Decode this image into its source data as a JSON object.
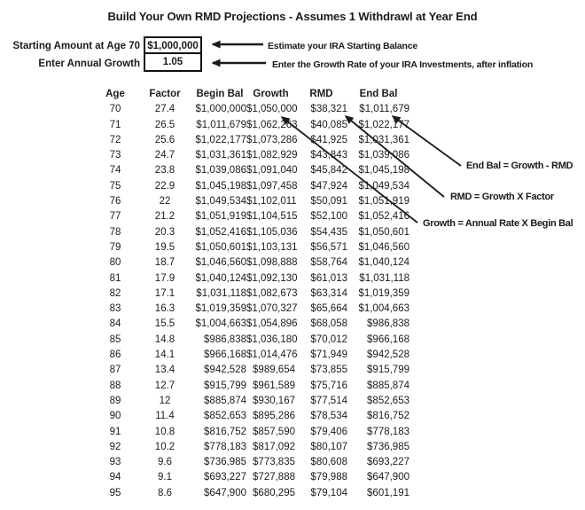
{
  "title": "Build Your Own RMD Projections - Assumes 1 Withdrawl at Year End",
  "inputs": {
    "starting_amount": {
      "label": "Starting Amount at Age 70",
      "value": "$1,000,000",
      "note": "Estimate your IRA Starting Balance"
    },
    "annual_growth": {
      "label": "Enter Annual Growth",
      "value": "1.05",
      "note": "Enter the Growth Rate of your IRA Investments, after inflation"
    }
  },
  "annotations": {
    "end_bal_formula": "End Bal = Growth - RMD",
    "rmd_formula": "RMD = Growth X Factor",
    "growth_formula": "Growth = Annual Rate X Begin Bal"
  },
  "table": {
    "columns": [
      "Age",
      "Factor",
      "Begin Bal",
      "Growth",
      "RMD",
      "End Bal"
    ],
    "rows": [
      [
        "70",
        "27.4",
        "$1,000,000",
        "$1,050,000",
        "$38,321",
        "$1,011,679"
      ],
      [
        "71",
        "26.5",
        "$1,011,679",
        "$1,062,263",
        "$40,085",
        "$1,022,177"
      ],
      [
        "72",
        "25.6",
        "$1,022,177",
        "$1,073,286",
        "$41,925",
        "$1,031,361"
      ],
      [
        "73",
        "24.7",
        "$1,031,361",
        "$1,082,929",
        "$43,843",
        "$1,039,086"
      ],
      [
        "74",
        "23.8",
        "$1,039,086",
        "$1,091,040",
        "$45,842",
        "$1,045,198"
      ],
      [
        "75",
        "22.9",
        "$1,045,198",
        "$1,097,458",
        "$47,924",
        "$1,049,534"
      ],
      [
        "76",
        "22",
        "$1,049,534",
        "$1,102,011",
        "$50,091",
        "$1,051,919"
      ],
      [
        "77",
        "21.2",
        "$1,051,919",
        "$1,104,515",
        "$52,100",
        "$1,052,416"
      ],
      [
        "78",
        "20.3",
        "$1,052,416",
        "$1,105,036",
        "$54,435",
        "$1,050,601"
      ],
      [
        "79",
        "19.5",
        "$1,050,601",
        "$1,103,131",
        "$56,571",
        "$1,046,560"
      ],
      [
        "80",
        "18.7",
        "$1,046,560",
        "$1,098,888",
        "$58,764",
        "$1,040,124"
      ],
      [
        "81",
        "17.9",
        "$1,040,124",
        "$1,092,130",
        "$61,013",
        "$1,031,118"
      ],
      [
        "82",
        "17.1",
        "$1,031,118",
        "$1,082,673",
        "$63,314",
        "$1,019,359"
      ],
      [
        "83",
        "16.3",
        "$1,019,359",
        "$1,070,327",
        "$65,664",
        "$1,004,663"
      ],
      [
        "84",
        "15.5",
        "$1,004,663",
        "$1,054,896",
        "$68,058",
        "$986,838"
      ],
      [
        "85",
        "14.8",
        "$986,838",
        "$1,036,180",
        "$70,012",
        "$966,168"
      ],
      [
        "86",
        "14.1",
        "$966,168",
        "$1,014,476",
        "$71,949",
        "$942,528"
      ],
      [
        "87",
        "13.4",
        "$942,528",
        "$989,654",
        "$73,855",
        "$915,799"
      ],
      [
        "88",
        "12.7",
        "$915,799",
        "$961,589",
        "$75,716",
        "$885,874"
      ],
      [
        "89",
        "12",
        "$885,874",
        "$930,167",
        "$77,514",
        "$852,653"
      ],
      [
        "90",
        "11.4",
        "$852,653",
        "$895,286",
        "$78,534",
        "$816,752"
      ],
      [
        "91",
        "10.8",
        "$816,752",
        "$857,590",
        "$79,406",
        "$778,183"
      ],
      [
        "92",
        "10.2",
        "$778,183",
        "$817,092",
        "$80,107",
        "$736,985"
      ],
      [
        "93",
        "9.6",
        "$736,985",
        "$773,835",
        "$80,608",
        "$693,227"
      ],
      [
        "94",
        "9.1",
        "$693,227",
        "$727,888",
        "$79,988",
        "$647,900"
      ],
      [
        "95",
        "8.6",
        "$647,900",
        "$680,295",
        "$79,104",
        "$601,191"
      ]
    ]
  },
  "colors": {
    "text": "#1b1b1b",
    "background": "#ffffff",
    "arrow": "#1b1b1b",
    "box_border": "#111111"
  }
}
